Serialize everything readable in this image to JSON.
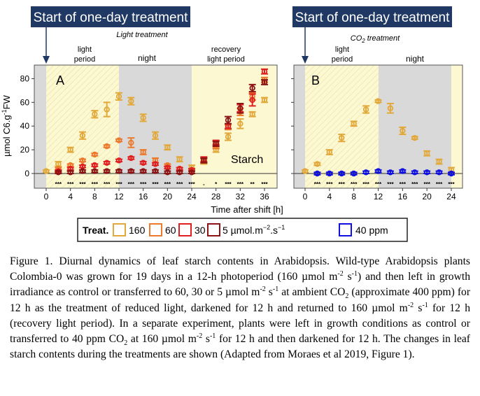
{
  "banners": {
    "a": "Start of one-day treatment",
    "b": "Start of one-day treatment"
  },
  "panel_a": {
    "label": "A",
    "treatment_title": "Light treatment",
    "phase_light": [
      "light",
      "period"
    ],
    "phase_night": "night",
    "phase_recovery": [
      "recovery",
      "light period"
    ],
    "starch_label": "Starch"
  },
  "panel_b": {
    "label": "B",
    "treatment_title_pre": "CO",
    "treatment_title_sub": "2",
    "treatment_title_post": " treatment",
    "phase_light": [
      "light",
      "period"
    ],
    "phase_night": "night"
  },
  "y_axis": {
    "label_pre": "µmol C6.g",
    "label_sup": "-1",
    "label_post": "FW",
    "ticks": [
      "0",
      "20",
      "40",
      "60",
      "80"
    ]
  },
  "x_axis": {
    "label": "Time after shift [h]"
  },
  "legend": {
    "title": "Treat.",
    "items": [
      {
        "label": "160",
        "color": "#e2a83a"
      },
      {
        "label": "60",
        "color": "#ec7a2c"
      },
      {
        "label": "30",
        "color": "#e02020"
      },
      {
        "label": "5 µmol.m",
        "sup": "−2",
        "tail": ".s",
        "sup2": "−1",
        "color": "#8c1414"
      },
      {
        "label": "40 ppm",
        "color": "#1010e0"
      }
    ]
  },
  "chart_data": [
    {
      "type": "scatter",
      "panel": "A",
      "title": "Light treatment",
      "xlabel": "Time after shift [h]",
      "ylabel": "µmol C6.g-1FW",
      "xlim": [
        -2,
        38
      ],
      "ylim": [
        -13,
        92
      ],
      "xticks": [
        0,
        4,
        8,
        12,
        16,
        20,
        24,
        28,
        32,
        36
      ],
      "yticks": [
        0,
        20,
        40,
        60,
        80
      ],
      "series": [
        {
          "name": "160",
          "color": "#e2a83a",
          "x": [
            0,
            2,
            4,
            6,
            8,
            10,
            12,
            14,
            16,
            18,
            20,
            22,
            24,
            26,
            28,
            30,
            32,
            34,
            36
          ],
          "y": [
            2,
            8,
            20,
            32,
            50,
            54,
            65,
            61,
            47,
            32,
            22,
            12,
            5,
            10,
            20,
            31,
            42,
            50,
            62
          ],
          "err": [
            1,
            2,
            2,
            3,
            3,
            6,
            3,
            3,
            3,
            3,
            2,
            2,
            2,
            2,
            2,
            3,
            4,
            2,
            2
          ]
        },
        {
          "name": "60",
          "color": "#ec7a2c",
          "x": [
            2,
            4,
            6,
            8,
            10,
            12,
            14,
            16,
            18,
            20,
            22,
            24,
            26,
            28,
            30,
            32,
            34,
            36
          ],
          "y": [
            4,
            7,
            11,
            16,
            23,
            28,
            26,
            18,
            11,
            7,
            4,
            3,
            11,
            23,
            39,
            52,
            65,
            79
          ],
          "err": [
            1,
            1,
            1,
            1,
            1,
            1,
            4,
            2,
            2,
            1,
            1,
            1,
            2,
            2,
            2,
            3,
            3,
            2
          ]
        },
        {
          "name": "30",
          "color": "#e02020",
          "x": [
            2,
            4,
            6,
            8,
            10,
            12,
            14,
            16,
            18,
            20,
            22,
            24,
            26,
            28,
            30,
            32,
            34,
            36
          ],
          "y": [
            2,
            4,
            6,
            7,
            9,
            11,
            13,
            9,
            8,
            5,
            4,
            3,
            12,
            26,
            40,
            55,
            62,
            86
          ],
          "err": [
            1,
            1,
            1,
            1,
            1,
            1,
            1,
            1,
            1,
            1,
            1,
            1,
            2,
            2,
            2,
            3,
            5,
            2
          ]
        },
        {
          "name": "5 µmol.m-2.s-1",
          "color": "#8c1414",
          "x": [
            2,
            4,
            6,
            8,
            10,
            12,
            14,
            16,
            18,
            20,
            22,
            24,
            26,
            28,
            30,
            32,
            34,
            36
          ],
          "y": [
            1,
            1,
            2,
            2,
            2,
            2,
            2,
            2,
            2,
            1,
            1,
            1,
            11,
            25,
            45,
            55,
            72,
            77
          ],
          "err": [
            1,
            1,
            1,
            1,
            1,
            1,
            1,
            1,
            1,
            1,
            1,
            1,
            2,
            2,
            3,
            4,
            3,
            2
          ]
        }
      ],
      "significance": {
        "x": [
          2,
          4,
          6,
          8,
          10,
          12,
          14,
          16,
          18,
          20,
          22,
          24,
          26,
          28,
          30,
          32,
          34,
          36
        ],
        "labels": [
          "***",
          "***",
          "***",
          "***",
          "***",
          "***",
          "***",
          "***",
          "***",
          "***",
          "***",
          "***",
          "-",
          "*",
          "***",
          "***",
          "**",
          "***"
        ]
      },
      "phases": [
        {
          "from": 0,
          "to": 12,
          "name": "light period"
        },
        {
          "from": 12,
          "to": 24,
          "name": "night"
        },
        {
          "from": 24,
          "to": 36,
          "name": "recovery light period"
        }
      ]
    },
    {
      "type": "scatter",
      "panel": "B",
      "title": "CO2 treatment",
      "xlabel": "Time after shift [h]",
      "xlim": [
        -2,
        25
      ],
      "ylim": [
        -13,
        92
      ],
      "xticks": [
        0,
        4,
        8,
        12,
        16,
        20,
        24
      ],
      "series": [
        {
          "name": "160",
          "color": "#e2a83a",
          "x": [
            0,
            2,
            4,
            6,
            8,
            10,
            12,
            14,
            16,
            18,
            20,
            22,
            24
          ],
          "y": [
            2,
            8,
            18,
            30,
            42,
            54,
            61,
            55,
            36,
            30,
            17,
            10,
            3
          ],
          "err": [
            1,
            1,
            2,
            3,
            2,
            3,
            1,
            4,
            3,
            1,
            2,
            2,
            2
          ]
        },
        {
          "name": "40 ppm",
          "color": "#1010e0",
          "x": [
            2,
            4,
            6,
            8,
            10,
            12,
            14,
            16,
            18,
            20,
            22,
            24
          ],
          "y": [
            0,
            0,
            0,
            0,
            1,
            2,
            1,
            2,
            1,
            1,
            1,
            0
          ],
          "err": [
            1,
            1,
            1,
            1,
            1,
            1,
            1,
            1,
            1,
            1,
            1,
            1
          ]
        }
      ],
      "significance": {
        "x": [
          2,
          4,
          6,
          8,
          10,
          12,
          14,
          16,
          18,
          20,
          22,
          24
        ],
        "labels": [
          "***",
          "***",
          "***",
          "***",
          "***",
          "***",
          "***",
          "***",
          "***",
          "***",
          "***",
          "***"
        ]
      },
      "phases": [
        {
          "from": 0,
          "to": 12,
          "name": "light period"
        },
        {
          "from": 12,
          "to": 24,
          "name": "night"
        }
      ]
    }
  ],
  "caption": {
    "p1": "Figure 1. Diurnal dynamics of leaf starch contents in Arabidopsis. Wild-type Arabidopsis plants Colombia-0 was grown for 19 days in a 12-h photoperiod (160 µmol m",
    "p1_sup1": "-2",
    "p1_mid": " s",
    "p1_sup2": "-1",
    "p2": ") and then left in growth irradiance as control or transferred to 60, 30 or 5 µmol m",
    "p2_sup1": "-2",
    "p2_mid": " s",
    "p2_sup2": "-1",
    "p3": " at ambient CO",
    "p3_sub": "2",
    "p4": " (approximate 400 ppm) for 12 h as the treatment of reduced light, darkened for 12 h and returned to 160 µmol m",
    "p4_sup1": "-2",
    "p4_mid": " s",
    "p4_sup2": "-1",
    "p5": " for 12 h (recovery light period). In a separate experiment, plants were left in growth conditions as control or transferred to 40 ppm CO",
    "p5_sub": "2",
    "p6": " at 160 µmol m",
    "p6_sup1": "-2",
    "p6_mid": " s",
    "p6_sup2": "-1",
    "p7": " for 12 h and then darkened for 12 h. The changes in leaf starch contents during the treatments are shown (Adapted from Moraes et al 2019, Figure 1)."
  }
}
